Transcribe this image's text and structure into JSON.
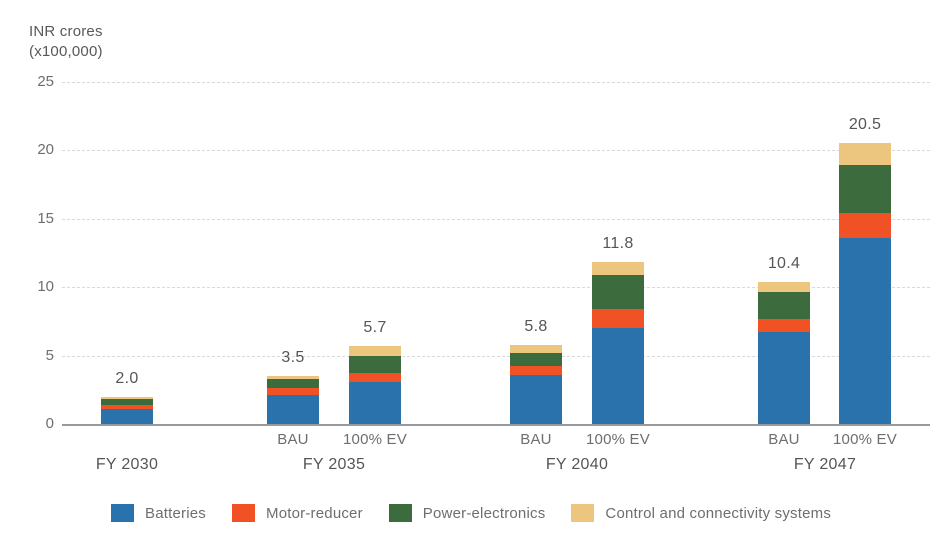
{
  "axis_title_line1": "INR crores",
  "axis_title_line2": "(x100,000)",
  "colors": {
    "batteries": "#2a72ac",
    "motor_reducer": "#f05125",
    "power_electronics": "#3c6b3e",
    "control_connectivity": "#ecc67f",
    "gridline": "#d9d9d9",
    "axis_line": "#98999b",
    "tick_text": "#6d6e71",
    "value_text": "#55565a"
  },
  "chart_data": {
    "type": "bar",
    "stacked": true,
    "title": "",
    "ylabel": "INR crores (x100,000)",
    "xlabel": "",
    "ylim": [
      0,
      25
    ],
    "yticks": [
      0,
      5,
      10,
      15,
      20,
      25
    ],
    "grid": "horizontal-dashed",
    "legend_position": "bottom",
    "series": [
      {
        "name": "Batteries",
        "color": "#2a72ac"
      },
      {
        "name": "Motor-reducer",
        "color": "#f05125"
      },
      {
        "name": "Power-electronics",
        "color": "#3c6b3e"
      },
      {
        "name": "Control and connectivity systems",
        "color": "#ecc67f"
      }
    ],
    "groups": [
      {
        "label": "FY 2030",
        "bars": [
          {
            "sublabel": "",
            "total_label": "2.0",
            "total": 2.0,
            "values": [
              1.1,
              0.3,
              0.45,
              0.15
            ]
          }
        ]
      },
      {
        "label": "FY 2035",
        "bars": [
          {
            "sublabel": "BAU",
            "total_label": "3.5",
            "total": 3.5,
            "values": [
              2.15,
              0.45,
              0.65,
              0.25
            ]
          },
          {
            "sublabel": "100% EV",
            "total_label": "5.7",
            "total": 5.7,
            "values": [
              3.05,
              0.7,
              1.25,
              0.7
            ]
          }
        ]
      },
      {
        "label": "FY 2040",
        "bars": [
          {
            "sublabel": "BAU",
            "total_label": "5.8",
            "total": 5.8,
            "values": [
              3.55,
              0.65,
              1.0,
              0.6
            ]
          },
          {
            "sublabel": "100% EV",
            "total_label": "11.8",
            "total": 11.8,
            "values": [
              7.0,
              1.4,
              2.5,
              0.9
            ]
          }
        ]
      },
      {
        "label": "FY 2047",
        "bars": [
          {
            "sublabel": "BAU",
            "total_label": "10.4",
            "total": 10.4,
            "values": [
              6.7,
              1.0,
              1.9,
              0.8
            ]
          },
          {
            "sublabel": "100% EV",
            "total_label": "20.5",
            "total": 20.5,
            "values": [
              13.6,
              1.8,
              3.5,
              1.6
            ]
          }
        ]
      }
    ]
  }
}
